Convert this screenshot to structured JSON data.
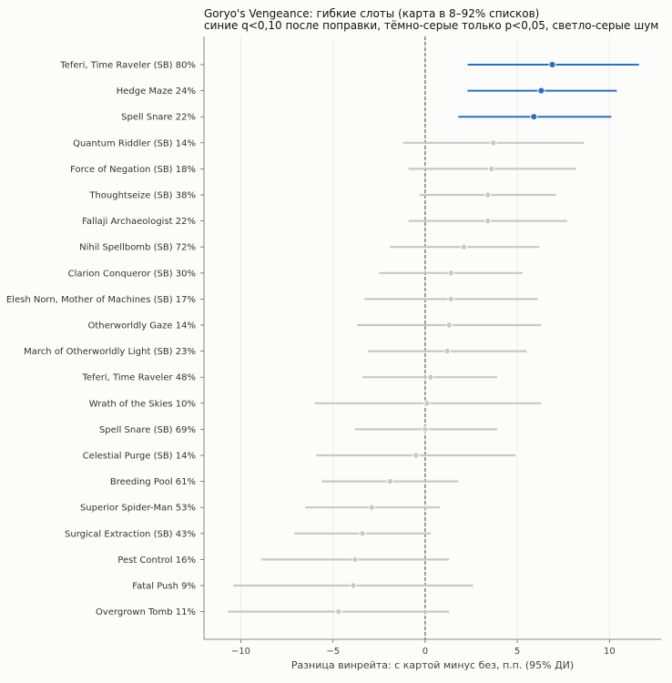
{
  "chart_data": {
    "type": "forest",
    "title": "Goryo's Vengeance: гибкие слоты (карта в 8–92% списков)",
    "subtitle": "синие q<0,10 после поправки, тёмно-серые только p<0,05, светло-серые шум",
    "xlabel": "Разница винрейта: с картой минус без, п.п. (95% ДИ)",
    "xlim": [
      -12,
      12.8
    ],
    "xticks": [
      -10,
      -5,
      0,
      5,
      10
    ],
    "xtick_labels": [
      "−10",
      "−5",
      "0",
      "5",
      "10"
    ],
    "reference_line": 0,
    "grid": "vertical",
    "colors": {
      "significant": "#2b6fc4",
      "noise": "#c8c8c8",
      "reference": "#555555"
    },
    "rows": [
      {
        "card": "Teferi, Time Raveler (SB)",
        "pct": "80%",
        "est": 6.9,
        "lo": 2.3,
        "hi": 11.6,
        "group": "significant"
      },
      {
        "card": "Hedge Maze",
        "pct": "24%",
        "est": 6.3,
        "lo": 2.3,
        "hi": 10.4,
        "group": "significant"
      },
      {
        "card": "Spell Snare",
        "pct": "22%",
        "est": 5.9,
        "lo": 1.8,
        "hi": 10.1,
        "group": "significant"
      },
      {
        "card": "Quantum Riddler (SB)",
        "pct": "14%",
        "est": 3.7,
        "lo": -1.2,
        "hi": 8.6,
        "group": "noise"
      },
      {
        "card": "Force of Negation (SB)",
        "pct": "18%",
        "est": 3.6,
        "lo": -0.9,
        "hi": 8.2,
        "group": "noise"
      },
      {
        "card": "Thoughtseize (SB)",
        "pct": "38%",
        "est": 3.4,
        "lo": -0.3,
        "hi": 7.1,
        "group": "noise"
      },
      {
        "card": "Fallaji Archaeologist",
        "pct": "22%",
        "est": 3.4,
        "lo": -0.9,
        "hi": 7.7,
        "group": "noise"
      },
      {
        "card": "Nihil Spellbomb (SB)",
        "pct": "72%",
        "est": 2.1,
        "lo": -1.9,
        "hi": 6.2,
        "group": "noise"
      },
      {
        "card": "Clarion Conqueror (SB)",
        "pct": "30%",
        "est": 1.4,
        "lo": -2.5,
        "hi": 5.3,
        "group": "noise"
      },
      {
        "card": "Elesh Norn, Mother of Machines (SB)",
        "pct": "17%",
        "est": 1.4,
        "lo": -3.3,
        "hi": 6.1,
        "group": "noise"
      },
      {
        "card": "Otherworldly Gaze",
        "pct": "14%",
        "est": 1.3,
        "lo": -3.7,
        "hi": 6.3,
        "group": "noise"
      },
      {
        "card": "March of Otherworldly Light (SB)",
        "pct": "23%",
        "est": 1.2,
        "lo": -3.1,
        "hi": 5.5,
        "group": "noise"
      },
      {
        "card": "Teferi, Time Raveler",
        "pct": "48%",
        "est": 0.3,
        "lo": -3.4,
        "hi": 3.9,
        "group": "noise"
      },
      {
        "card": "Wrath of the Skies",
        "pct": "10%",
        "est": 0.1,
        "lo": -6.0,
        "hi": 6.3,
        "group": "noise"
      },
      {
        "card": "Spell Snare (SB)",
        "pct": "69%",
        "est": 0.0,
        "lo": -3.8,
        "hi": 3.9,
        "group": "noise"
      },
      {
        "card": "Celestial Purge (SB)",
        "pct": "14%",
        "est": -0.5,
        "lo": -5.9,
        "hi": 4.9,
        "group": "noise"
      },
      {
        "card": "Breeding Pool",
        "pct": "61%",
        "est": -1.9,
        "lo": -5.6,
        "hi": 1.8,
        "group": "noise"
      },
      {
        "card": "Superior Spider-Man",
        "pct": "53%",
        "est": -2.9,
        "lo": -6.5,
        "hi": 0.8,
        "group": "noise"
      },
      {
        "card": "Surgical Extraction (SB)",
        "pct": "43%",
        "est": -3.4,
        "lo": -7.1,
        "hi": 0.3,
        "group": "noise"
      },
      {
        "card": "Pest Control",
        "pct": "16%",
        "est": -3.8,
        "lo": -8.9,
        "hi": 1.3,
        "group": "noise"
      },
      {
        "card": "Fatal Push",
        "pct": "9%",
        "est": -3.9,
        "lo": -10.4,
        "hi": 2.6,
        "group": "noise"
      },
      {
        "card": "Overgrown Tomb",
        "pct": "11%",
        "est": -4.7,
        "lo": -10.7,
        "hi": 1.3,
        "group": "noise"
      }
    ]
  }
}
